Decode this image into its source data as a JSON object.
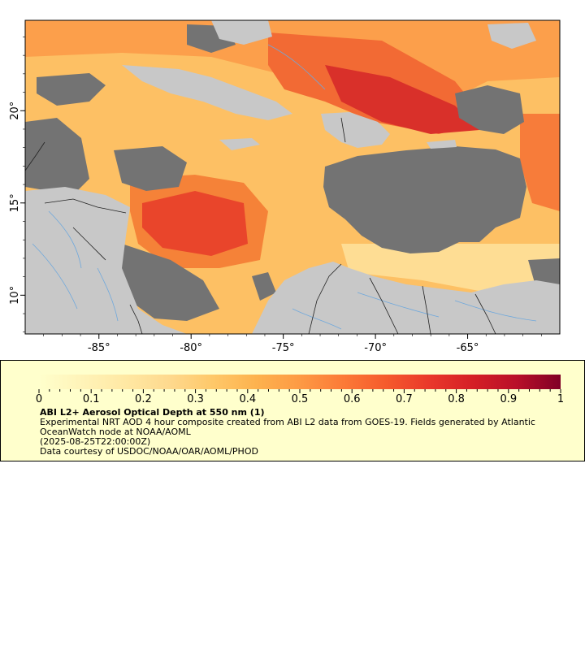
{
  "map": {
    "lon_ticks": [
      {
        "value": -85,
        "label": "-85°"
      },
      {
        "value": -80,
        "label": "-80°"
      },
      {
        "value": -75,
        "label": "-75°"
      },
      {
        "value": -70,
        "label": "-70°"
      },
      {
        "value": -65,
        "label": "-65°"
      }
    ],
    "lat_ticks": [
      {
        "value": 10,
        "label": "10°"
      },
      {
        "value": 15,
        "label": "15°"
      },
      {
        "value": 20,
        "label": "20°"
      }
    ],
    "extent": {
      "lon_min": -89,
      "lon_max": -60,
      "lat_min": 7.9,
      "lat_max": 24.9
    },
    "colors": {
      "land": "#c8c8c8",
      "no_data": "#737373",
      "rivers": "#6fa8dc",
      "borders": "#222222"
    }
  },
  "legend": {
    "tick_labels": [
      "0",
      "0.1",
      "0.2",
      "0.3",
      "0.4",
      "0.5",
      "0.6",
      "0.7",
      "0.8",
      "0.9",
      "1"
    ],
    "title": "ABI L2+ Aerosol Optical Depth at 550 nm (1)",
    "description": "Experimental NRT AOD 4 hour composite created from ABI L2 data from GOES-19. Fields generated by Atlantic OceanWatch node at NOAA/AOML",
    "timestamp": "(2025-08-25T22:00:00Z)",
    "credit": "Data courtesy of USDOC/NOAA/OAR/AOML/PHOD",
    "colors": [
      "#ffffcc",
      "#fff3b8",
      "#ffe8a3",
      "#fed98e",
      "#fec869",
      "#fdb24e",
      "#fd9a44",
      "#fc7a37",
      "#f55a2c",
      "#e9372b",
      "#d41f26",
      "#b80f29",
      "#800026"
    ]
  }
}
